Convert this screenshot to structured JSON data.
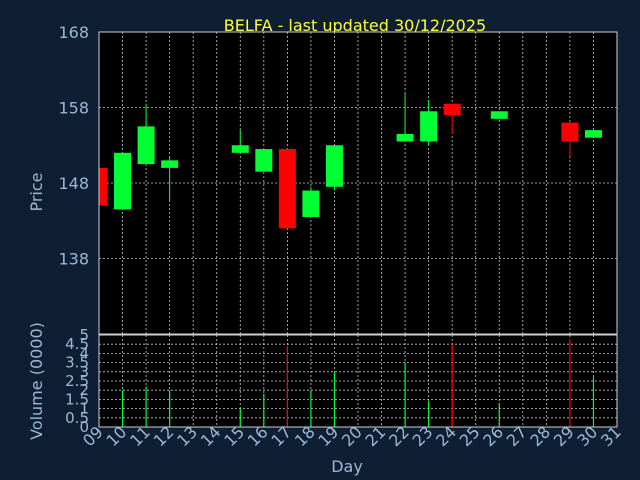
{
  "chart_data": [
    {
      "type": "candlestick",
      "title": "BELFA - last updated 30/12/2025",
      "ylabel": "Price",
      "ylim": [
        128,
        168
      ],
      "yticks": [
        138,
        148,
        158,
        168
      ],
      "grid": true,
      "colors": {
        "up": "#00ff33",
        "down": "#ff0000"
      },
      "days": [
        {
          "day": 9,
          "open": 150.0,
          "high": 150.5,
          "low": 145.0,
          "close": 145.0
        },
        {
          "day": 10,
          "open": 144.5,
          "high": 152.0,
          "low": 144.5,
          "close": 152.0
        },
        {
          "day": 11,
          "open": 150.5,
          "high": 158.5,
          "low": 150.5,
          "close": 155.5
        },
        {
          "day": 12,
          "open": 150.0,
          "high": 151.5,
          "low": 145.5,
          "close": 151.0
        },
        {
          "day": 15,
          "open": 152.0,
          "high": 155.0,
          "low": 152.0,
          "close": 153.0
        },
        {
          "day": 16,
          "open": 149.5,
          "high": 152.5,
          "low": 149.5,
          "close": 152.5
        },
        {
          "day": 17,
          "open": 152.5,
          "high": 152.5,
          "low": 142.0,
          "close": 142.0
        },
        {
          "day": 18,
          "open": 143.5,
          "high": 147.5,
          "low": 143.5,
          "close": 147.0
        },
        {
          "day": 19,
          "open": 147.5,
          "high": 153.0,
          "low": 147.0,
          "close": 153.0
        },
        {
          "day": 22,
          "open": 153.5,
          "high": 160.0,
          "low": 153.5,
          "close": 154.5
        },
        {
          "day": 23,
          "open": 153.5,
          "high": 159.0,
          "low": 153.0,
          "close": 157.5
        },
        {
          "day": 24,
          "open": 158.5,
          "high": 158.5,
          "low": 154.5,
          "close": 157.0
        },
        {
          "day": 26,
          "open": 156.5,
          "high": 157.5,
          "low": 156.5,
          "close": 157.5
        },
        {
          "day": 29,
          "open": 156.0,
          "high": 156.0,
          "low": 151.5,
          "close": 153.5
        },
        {
          "day": 30,
          "open": 154.0,
          "high": 155.0,
          "low": 154.0,
          "close": 155.0
        }
      ]
    },
    {
      "type": "bar",
      "ylabel": "Volume (0000)",
      "ylim": [
        0,
        5
      ],
      "yticks": [
        0,
        0.5,
        1,
        1.5,
        2,
        2.5,
        3,
        3.5,
        4,
        4.5,
        5
      ],
      "ytick_labels": [
        "0",
        "0.5",
        "1",
        "1.5",
        "2",
        "2.5",
        "3",
        "3.5",
        "4",
        "4.5",
        "5"
      ],
      "xlabel": "Day",
      "xticks": [
        "09",
        "10",
        "11",
        "12",
        "13",
        "14",
        "15",
        "16",
        "17",
        "18",
        "19",
        "20",
        "21",
        "22",
        "23",
        "24",
        "25",
        "26",
        "27",
        "28",
        "29",
        "30",
        "31"
      ],
      "grid": true,
      "bars": [
        {
          "day": 9,
          "value": 0,
          "dir": "down"
        },
        {
          "day": 10,
          "value": 2.0,
          "dir": "up"
        },
        {
          "day": 11,
          "value": 2.2,
          "dir": "up"
        },
        {
          "day": 12,
          "value": 2.0,
          "dir": "up"
        },
        {
          "day": 15,
          "value": 1.0,
          "dir": "up"
        },
        {
          "day": 16,
          "value": 1.8,
          "dir": "up"
        },
        {
          "day": 17,
          "value": 4.4,
          "dir": "down"
        },
        {
          "day": 18,
          "value": 2.0,
          "dir": "up"
        },
        {
          "day": 19,
          "value": 3.0,
          "dir": "up"
        },
        {
          "day": 22,
          "value": 3.5,
          "dir": "up"
        },
        {
          "day": 23,
          "value": 1.4,
          "dir": "up"
        },
        {
          "day": 24,
          "value": 4.5,
          "dir": "down"
        },
        {
          "day": 26,
          "value": 1.3,
          "dir": "up"
        },
        {
          "day": 29,
          "value": 4.8,
          "dir": "down"
        },
        {
          "day": 30,
          "value": 2.7,
          "dir": "up"
        }
      ]
    }
  ]
}
